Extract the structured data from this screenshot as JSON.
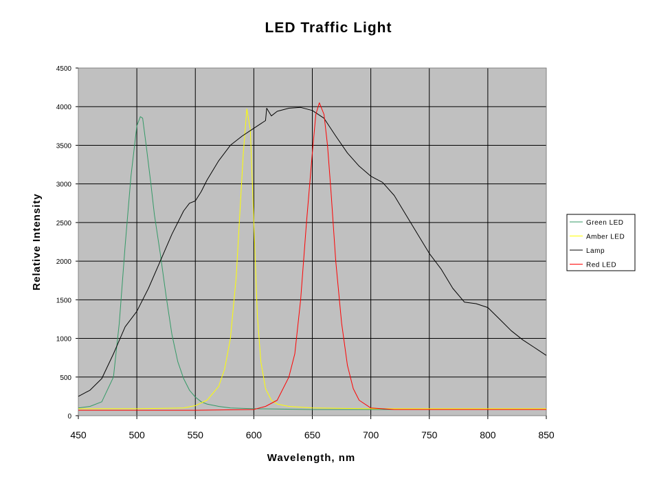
{
  "chart_data": {
    "type": "line",
    "title": "LED Traffic Light",
    "xlabel": "Wavelength, nm",
    "ylabel": "Relative Intensity",
    "xlim": [
      450,
      850
    ],
    "ylim": [
      0,
      4500
    ],
    "xticks": [
      "450",
      "500",
      "550",
      "600",
      "650",
      "700",
      "750",
      "800",
      "850"
    ],
    "yticks": [
      "0",
      "500",
      "1000",
      "1500",
      "2000",
      "2500",
      "3000",
      "3500",
      "4000",
      "4500"
    ],
    "grid": true,
    "plot_background": "#c0c0c0",
    "legend_position": "right",
    "series": [
      {
        "name": "Green LED",
        "color": "#339966",
        "x": [
          450,
          460,
          470,
          480,
          485,
          490,
          495,
          500,
          503,
          505,
          508,
          512,
          515,
          520,
          525,
          530,
          535,
          540,
          545,
          550,
          555,
          560,
          570,
          580,
          600,
          650,
          700,
          750,
          800,
          850
        ],
        "y": [
          100,
          120,
          180,
          500,
          1200,
          2200,
          3100,
          3750,
          3870,
          3850,
          3500,
          3000,
          2600,
          2100,
          1550,
          1050,
          700,
          480,
          330,
          240,
          180,
          150,
          120,
          100,
          90,
          80,
          80,
          80,
          80,
          80
        ]
      },
      {
        "name": "Amber LED",
        "color": "#ffff00",
        "x": [
          450,
          500,
          540,
          550,
          560,
          570,
          575,
          580,
          585,
          588,
          591,
          594,
          597,
          600,
          603,
          606,
          610,
          615,
          620,
          630,
          650,
          700,
          750,
          800,
          850
        ],
        "y": [
          90,
          90,
          100,
          130,
          200,
          380,
          600,
          1000,
          1800,
          2600,
          3400,
          3970,
          3700,
          2500,
          1300,
          700,
          350,
          200,
          150,
          120,
          100,
          90,
          90,
          90,
          90
        ]
      },
      {
        "name": "Lamp",
        "color": "#000000",
        "x": [
          450,
          460,
          470,
          480,
          490,
          500,
          510,
          520,
          530,
          540,
          545,
          550,
          555,
          560,
          570,
          580,
          590,
          600,
          610,
          611,
          615,
          620,
          630,
          640,
          650,
          660,
          670,
          680,
          690,
          700,
          710,
          720,
          730,
          740,
          750,
          760,
          770,
          780,
          790,
          800,
          810,
          820,
          830,
          840,
          850
        ],
        "y": [
          250,
          330,
          480,
          800,
          1150,
          1350,
          1650,
          2000,
          2350,
          2650,
          2750,
          2780,
          2900,
          3050,
          3300,
          3500,
          3620,
          3720,
          3820,
          3980,
          3880,
          3940,
          3980,
          3990,
          3950,
          3850,
          3620,
          3400,
          3230,
          3100,
          3020,
          2850,
          2600,
          2350,
          2100,
          1900,
          1650,
          1470,
          1450,
          1400,
          1250,
          1100,
          980,
          880,
          780
        ]
      },
      {
        "name": "Red LED",
        "color": "#ff0000",
        "x": [
          450,
          500,
          550,
          600,
          610,
          620,
          630,
          635,
          640,
          645,
          650,
          653,
          656,
          660,
          663,
          666,
          670,
          675,
          680,
          685,
          690,
          700,
          720,
          750,
          800,
          850
        ],
        "y": [
          70,
          70,
          70,
          80,
          120,
          200,
          500,
          800,
          1500,
          2500,
          3400,
          3900,
          4050,
          3900,
          3500,
          2900,
          2000,
          1200,
          650,
          350,
          200,
          100,
          80,
          80,
          80,
          80
        ]
      }
    ]
  }
}
